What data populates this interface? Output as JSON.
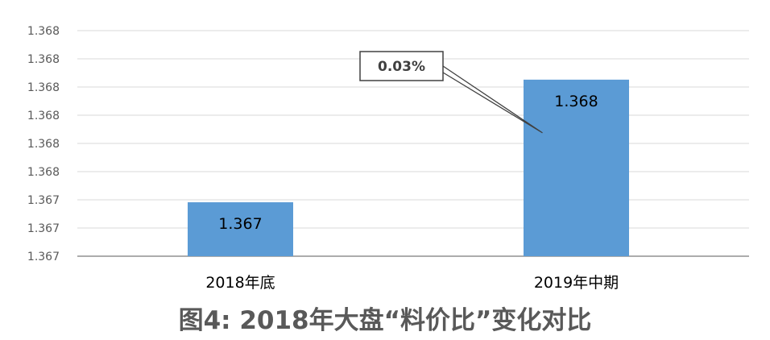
{
  "chart_data": {
    "type": "bar",
    "title": "图4: 2018年大盘“料价比”变化对比",
    "categories": [
      "2018年底",
      "2019年中期"
    ],
    "values": [
      1.367,
      1.368
    ],
    "data_labels": [
      "1.367",
      "1.368"
    ],
    "y_tick_labels": [
      "1.367",
      "1.367",
      "1.367",
      "1.368",
      "1.368",
      "1.368",
      "1.368",
      "1.368",
      "1.368"
    ],
    "ylim": [
      1.36656,
      1.3684
    ],
    "grid": true,
    "bar_color": "#5B9BD5",
    "annotation": {
      "text": "0.03%",
      "points_to": "2019年中期"
    }
  }
}
